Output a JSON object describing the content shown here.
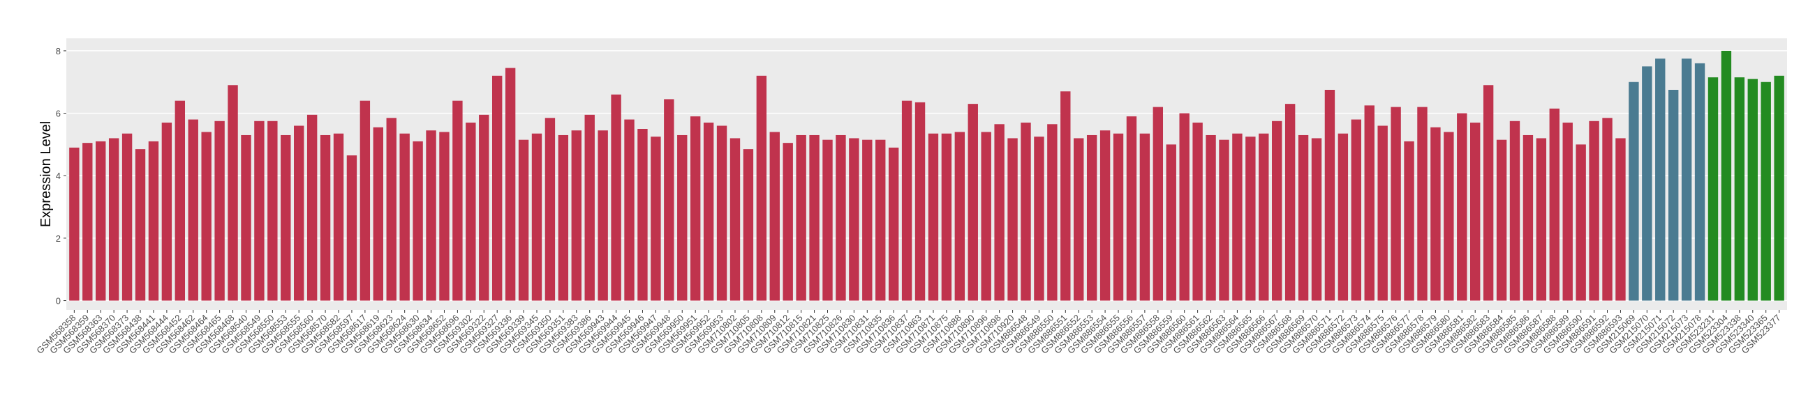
{
  "chart_data": {
    "type": "bar",
    "y_label": "Expression Level",
    "ylim": [
      -0.3,
      8.4
    ],
    "yticks": [
      0,
      2,
      4,
      6,
      8
    ],
    "grid": true,
    "series": [
      {
        "color": "#c0334d",
        "categories": [
          "GSM568358",
          "GSM568359",
          "GSM568363",
          "GSM568370",
          "GSM568373",
          "GSM568438",
          "GSM568441",
          "GSM568444",
          "GSM568452",
          "GSM568462",
          "GSM568464",
          "GSM568465",
          "GSM568468",
          "GSM568540",
          "GSM568549",
          "GSM568550",
          "GSM568553",
          "GSM568555",
          "GSM568560",
          "GSM568570",
          "GSM568582",
          "GSM568597",
          "GSM568617",
          "GSM568619",
          "GSM568623",
          "GSM568624",
          "GSM568630",
          "GSM568634",
          "GSM568652",
          "GSM568696",
          "GSM569302",
          "GSM569322",
          "GSM569327",
          "GSM569336",
          "GSM569339",
          "GSM569345",
          "GSM569350",
          "GSM569351",
          "GSM569383",
          "GSM569386",
          "GSM569943",
          "GSM569944",
          "GSM569945",
          "GSM569946",
          "GSM569947",
          "GSM569948",
          "GSM569950",
          "GSM569951",
          "GSM569952",
          "GSM569953",
          "GSM710802",
          "GSM710805",
          "GSM710808",
          "GSM710809",
          "GSM710812",
          "GSM710815",
          "GSM710821",
          "GSM710825",
          "GSM710826",
          "GSM710830",
          "GSM710831",
          "GSM710835",
          "GSM710836",
          "GSM710837",
          "GSM710863",
          "GSM710871",
          "GSM710875",
          "GSM710888",
          "GSM710890",
          "GSM710896",
          "GSM710898",
          "GSM710920",
          "GSM886548",
          "GSM886549",
          "GSM886550",
          "GSM886551",
          "GSM886552",
          "GSM886553",
          "GSM886554",
          "GSM886555",
          "GSM886556",
          "GSM886557",
          "GSM886558",
          "GSM886559",
          "GSM886560",
          "GSM886561",
          "GSM886562",
          "GSM886563",
          "GSM886564",
          "GSM886565",
          "GSM886566",
          "GSM886567",
          "GSM886568",
          "GSM886569",
          "GSM886570",
          "GSM886571",
          "GSM886572",
          "GSM886573",
          "GSM886574",
          "GSM886575",
          "GSM886576",
          "GSM886577",
          "GSM886578",
          "GSM886579",
          "GSM886580",
          "GSM886581",
          "GSM886582",
          "GSM886583",
          "GSM886584",
          "GSM886585",
          "GSM886586",
          "GSM886587",
          "GSM886588",
          "GSM886589",
          "GSM886590",
          "GSM886591",
          "GSM886592",
          "GSM886593"
        ],
        "values": [
          4.9,
          5.05,
          5.1,
          5.2,
          5.35,
          4.85,
          5.1,
          5.7,
          6.4,
          5.8,
          5.4,
          5.75,
          6.9,
          5.3,
          5.75,
          5.75,
          5.3,
          5.6,
          5.95,
          5.3,
          5.35,
          4.65,
          6.4,
          5.55,
          5.85,
          5.35,
          5.1,
          5.45,
          5.4,
          6.4,
          5.7,
          5.95,
          7.2,
          7.45,
          5.15,
          5.35,
          5.85,
          5.3,
          5.45,
          5.95,
          5.45,
          6.6,
          5.8,
          5.5,
          5.25,
          6.45,
          5.3,
          5.9,
          5.7,
          5.6,
          5.2,
          4.85,
          7.2,
          5.4,
          5.05,
          5.3,
          5.3,
          5.15,
          5.3,
          5.2,
          5.15,
          5.15,
          4.9,
          6.4,
          6.35,
          5.35,
          5.35,
          5.4,
          6.3,
          5.4,
          5.65,
          5.2,
          5.7,
          5.25,
          5.65,
          6.7,
          5.2,
          5.3,
          5.45,
          5.35,
          5.9,
          5.35,
          6.2,
          5.0,
          6.0,
          5.7,
          5.3,
          5.15,
          5.35,
          5.25,
          5.35,
          5.75,
          6.3,
          5.3,
          5.2,
          6.75,
          5.35,
          5.8,
          6.25,
          5.6,
          6.2,
          5.1,
          6.2,
          5.55,
          5.4,
          6.0,
          5.7,
          6.9,
          5.15,
          5.75,
          5.3,
          5.2,
          6.15,
          5.7,
          5.0,
          5.75,
          5.85,
          5.2
        ]
      },
      {
        "color": "#4a7b91",
        "categories": [
          "GSM215069",
          "GSM215070",
          "GSM215071",
          "GSM215072",
          "GSM215073",
          "GSM215078"
        ],
        "values": [
          7.0,
          7.5,
          7.75,
          6.75,
          7.75,
          7.6
        ]
      },
      {
        "color": "#238b21",
        "categories": [
          "GSM523231",
          "GSM523304",
          "GSM523338",
          "GSM523340",
          "GSM523365",
          "GSM523377"
        ],
        "values": [
          7.15,
          8.0,
          7.15,
          7.1,
          7.0,
          7.2
        ]
      }
    ]
  }
}
